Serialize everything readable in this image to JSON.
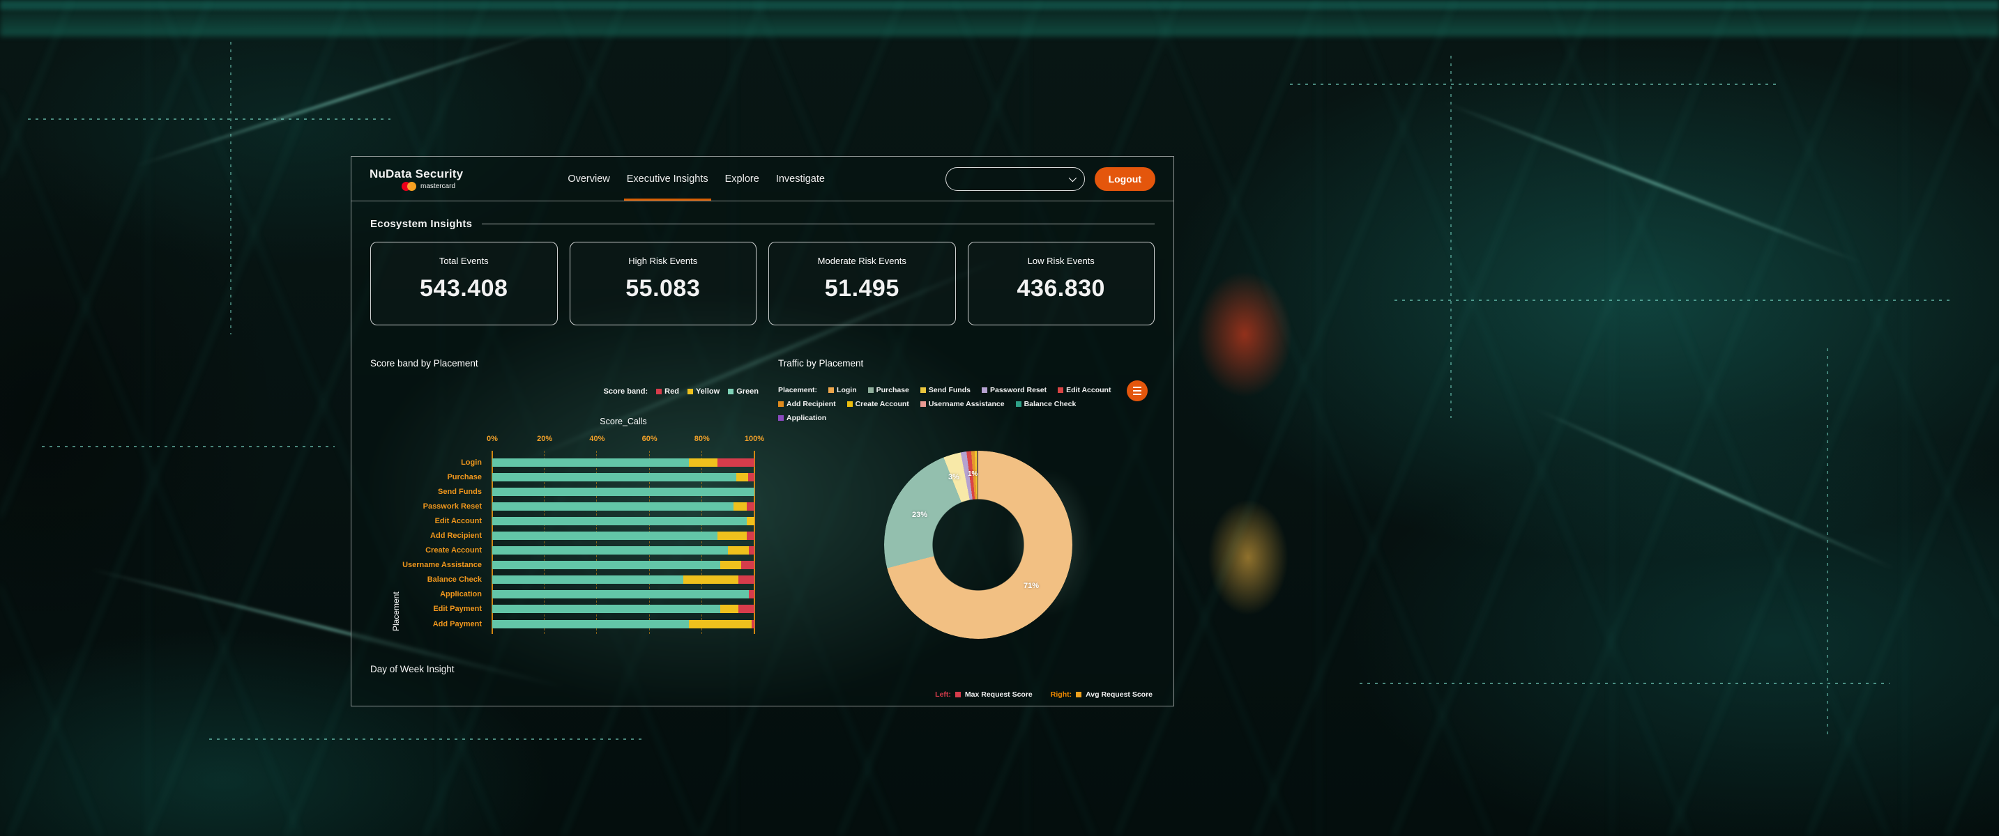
{
  "header": {
    "brand": {
      "title": "NuData Security",
      "subbrand": "mastercard"
    },
    "nav": [
      {
        "label": "Overview",
        "active": false
      },
      {
        "label": "Executive Insights",
        "active": true
      },
      {
        "label": "Explore",
        "active": false
      },
      {
        "label": "Investigate",
        "active": false
      }
    ],
    "account_dropdown": {
      "value": ""
    },
    "logout_label": "Logout"
  },
  "section_title": "Ecosystem Insights",
  "stat_cards": [
    {
      "label": "Total Events",
      "value": "543.408"
    },
    {
      "label": "High Risk Events",
      "value": "55.083"
    },
    {
      "label": "Moderate Risk Events",
      "value": "51.495"
    },
    {
      "label": "Low Risk Events",
      "value": "436.830"
    }
  ],
  "chart_data": [
    {
      "type": "bar",
      "title": "Score band by Placement",
      "orientation": "horizontal",
      "stacked": true,
      "axis_title": "Score_Calls",
      "ylabel": "Placement",
      "x_ticks": [
        "0%",
        "20%",
        "40%",
        "60%",
        "80%",
        "100%"
      ],
      "xlim": [
        0,
        100
      ],
      "legend_label": "Score band:",
      "legend_items": [
        {
          "name": "Red",
          "color": "#d63c4b"
        },
        {
          "name": "Yellow",
          "color": "#efc11d"
        },
        {
          "name": "Green",
          "color": "#7fd3b8"
        }
      ],
      "categories": [
        "Login",
        "Purchase",
        "Send Funds",
        "Passwork Reset",
        "Edit Account",
        "Add Recipient",
        "Create Account",
        "Username Assistance",
        "Balance Check",
        "Application",
        "Edit Payment",
        "Add Payment"
      ],
      "series": [
        {
          "name": "Green",
          "color": "#63c6a8",
          "values": [
            75,
            93,
            100,
            92,
            97,
            86,
            90,
            87,
            73,
            98,
            87,
            75
          ]
        },
        {
          "name": "Yellow",
          "color": "#efc11d",
          "values": [
            11,
            4.5,
            0,
            5,
            3,
            11,
            8,
            8,
            21,
            0,
            7,
            24
          ]
        },
        {
          "name": "Red",
          "color": "#d63c4b",
          "values": [
            14,
            2.5,
            0,
            3,
            0,
            3,
            2,
            5,
            6,
            2,
            6,
            1
          ]
        }
      ]
    },
    {
      "type": "pie",
      "donut": true,
      "title": "Traffic by Placement",
      "legend_label": "Placement:",
      "legend_items": [
        {
          "name": "Login",
          "color": "#eda64c"
        },
        {
          "name": "Purchase",
          "color": "#8fae9b"
        },
        {
          "name": "Send Funds",
          "color": "#e9c53d"
        },
        {
          "name": "Password Reset",
          "color": "#b5a2d0"
        },
        {
          "name": "Edit Account",
          "color": "#d94545"
        },
        {
          "name": "Add Recipient",
          "color": "#e08b1d"
        },
        {
          "name": "Create Account",
          "color": "#ecbd0e"
        },
        {
          "name": "Username Assistance",
          "color": "#e89a93"
        },
        {
          "name": "Balance Check",
          "color": "#2ea188"
        },
        {
          "name": "Application",
          "color": "#8b4bbf"
        }
      ],
      "segments": [
        {
          "name": "Login",
          "value": 71,
          "color": "#f2c083",
          "label": "71%"
        },
        {
          "name": "Balance Check",
          "value": 23,
          "color": "#93bfae",
          "label": "23%"
        },
        {
          "name": "Send Funds",
          "value": 3,
          "color": "#f8e9a8",
          "label": "3%"
        },
        {
          "name": "Password Reset",
          "value": 1,
          "color": "#b5a2d0",
          "label": "1%"
        },
        {
          "name": "Edit Account",
          "value": 0.8,
          "color": "#d94545",
          "label": ""
        },
        {
          "name": "Add Recipient",
          "value": 0.6,
          "color": "#e6952f",
          "label": ""
        },
        {
          "name": "Create Account",
          "value": 0.4,
          "color": "#f0c82d",
          "label": ""
        },
        {
          "name": "Application",
          "value": 0.2,
          "color": "#46355a",
          "label": ""
        }
      ]
    }
  ],
  "day_of_week": {
    "title": "Day of Week Insight",
    "legend": [
      {
        "prefix": "Left:",
        "prefix_color": "#d63c4b",
        "swatch": "#d63c4b",
        "label": "Max Request Score"
      },
      {
        "prefix": "Right:",
        "prefix_color": "#ef8a00",
        "swatch": "#efa11d",
        "label": "Avg Request Score"
      }
    ]
  }
}
